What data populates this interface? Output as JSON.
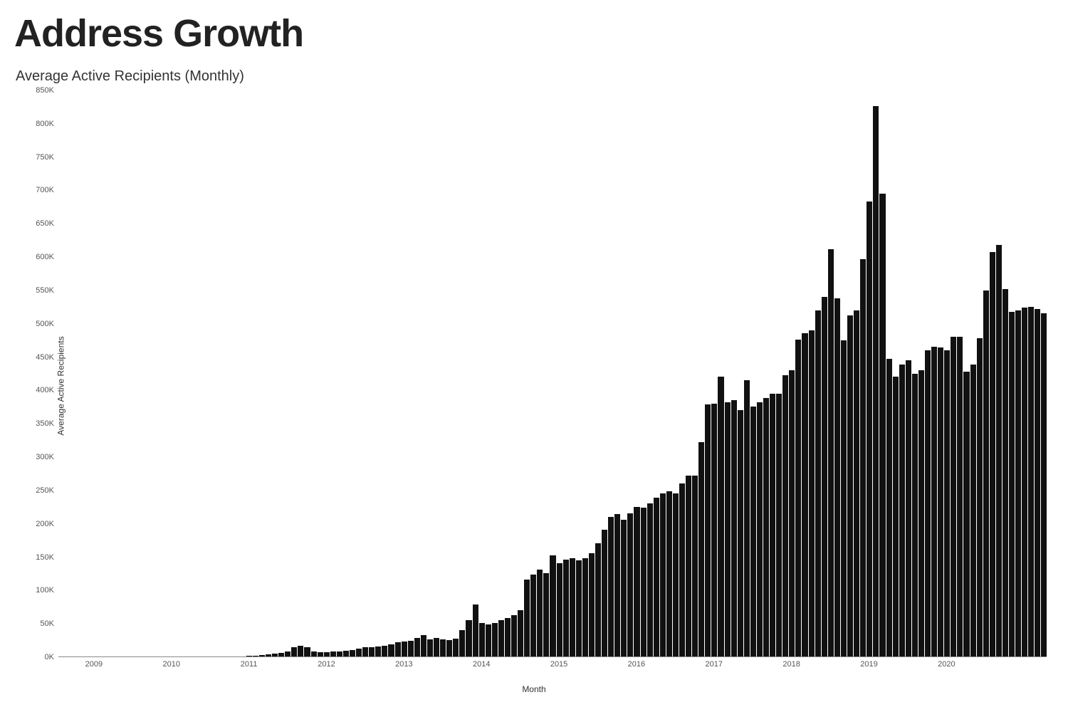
{
  "title": "Address Growth",
  "subtitle": "Average Active Recipients (Monthly)",
  "chart": {
    "type": "bar",
    "xlabel": "Month",
    "ylabel": "Average Active Recipients",
    "background_color": "#ffffff",
    "bar_color": "#111111",
    "axis_color": "#888888",
    "tick_color": "#555555",
    "title_fontsize": 54,
    "subtitle_fontsize": 20,
    "tick_fontsize": 11,
    "label_fontsize": 12,
    "ylim": [
      0,
      850000
    ],
    "ytick_step": 50000,
    "yticks": [
      "0K",
      "50K",
      "100K",
      "150K",
      "200K",
      "250K",
      "300K",
      "350K",
      "400K",
      "450K",
      "500K",
      "550K",
      "600K",
      "650K",
      "700K",
      "750K",
      "800K",
      "850K"
    ],
    "xrange_years": [
      2009,
      2020
    ],
    "xticks_years": [
      2009,
      2010,
      2011,
      2012,
      2013,
      2014,
      2015,
      2016,
      2017,
      2018,
      2019,
      2020
    ],
    "start_year": 2008,
    "start_month": 8,
    "values": [
      0,
      0,
      0,
      0,
      0,
      0,
      0,
      0,
      0,
      0,
      0,
      0,
      0,
      0,
      0,
      0,
      0,
      0,
      0,
      0,
      0,
      0,
      0,
      0,
      0,
      0,
      0,
      0,
      0,
      1000,
      1500,
      2000,
      3000,
      4000,
      5000,
      8000,
      14000,
      16000,
      14000,
      8000,
      6000,
      6000,
      7000,
      8000,
      9000,
      10000,
      12000,
      14000,
      14000,
      15000,
      16000,
      18000,
      21000,
      23000,
      24000,
      28000,
      32000,
      26000,
      28000,
      26000,
      25000,
      27000,
      40000,
      55000,
      78000,
      50000,
      48000,
      50000,
      55000,
      58000,
      62000,
      70000,
      115000,
      123000,
      130000,
      125000,
      152000,
      140000,
      145000,
      148000,
      144000,
      148000,
      155000,
      170000,
      190000,
      210000,
      214000,
      205000,
      215000,
      225000,
      224000,
      230000,
      238000,
      245000,
      248000,
      245000,
      260000,
      272000,
      272000,
      322000,
      378000,
      380000,
      420000,
      382000,
      385000,
      370000,
      415000,
      375000,
      382000,
      388000,
      395000,
      395000,
      422000,
      430000,
      476000,
      485000,
      490000,
      520000,
      540000,
      612000,
      538000,
      475000,
      512000,
      520000,
      597000,
      683000,
      826000,
      695000,
      447000,
      420000,
      438000,
      445000,
      425000,
      430000,
      460000,
      465000,
      464000,
      460000,
      480000,
      480000,
      428000,
      438000,
      478000,
      550000,
      607000,
      618000,
      552000,
      518000,
      520000,
      524000,
      525000,
      522000,
      515000
    ]
  }
}
